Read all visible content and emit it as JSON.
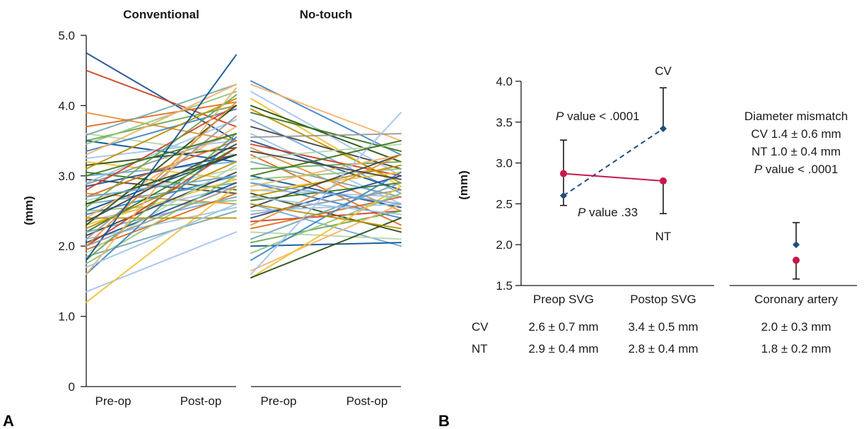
{
  "panel_a": {
    "label": "A",
    "ylabel": "(mm)",
    "y_ticks": [
      "0",
      "1.0",
      "2.0",
      "3.0",
      "4.0",
      "5.0"
    ],
    "groups": [
      {
        "title": "Conventional",
        "x_labels": [
          "Pre-op",
          "Post-op"
        ]
      },
      {
        "title": "No-touch",
        "x_labels": [
          "Pre-op",
          "Post-op"
        ]
      }
    ]
  },
  "panel_b": {
    "label": "B",
    "ylabel": "(mm)",
    "y_ticks": [
      "1.5",
      "2.0",
      "2.5",
      "3.0",
      "3.5",
      "4.0"
    ],
    "x_labels": [
      "Preop SVG",
      "Postop SVG",
      "Coronary artery"
    ],
    "series_labels": {
      "cv": "CV",
      "nt": "NT"
    },
    "annotations": {
      "cv_p_italic": "P",
      "cv_p_rest": " value < .0001",
      "nt_p_italic": "P",
      "nt_p_rest": " value .33",
      "mismatch_title": "Diameter mismatch",
      "mismatch_cv": "CV 1.4 ± 0.6 mm",
      "mismatch_nt": "NT 1.0 ± 0.4 mm",
      "mismatch_p_italic": "P",
      "mismatch_p_rest": " value < .0001"
    },
    "table": {
      "rows": [
        {
          "label": "CV",
          "cells": [
            "2.6 ± 0.7 mm",
            "3.4 ± 0.5 mm",
            "2.0 ± 0.3 mm"
          ]
        },
        {
          "label": "NT",
          "cells": [
            "2.9 ± 0.4 mm",
            "2.8 ± 0.4 mm",
            "1.8 ± 0.2 mm"
          ]
        }
      ]
    }
  },
  "chart_data": [
    {
      "type": "line",
      "title": "",
      "panel": "A",
      "ylabel": "(mm)",
      "ylim": [
        0,
        5
      ],
      "grid": false,
      "groups": [
        {
          "name": "Conventional",
          "x": [
            "Pre-op",
            "Post-op"
          ],
          "pairs": [
            [
              4.75,
              3.5
            ],
            [
              4.5,
              3.7
            ],
            [
              3.9,
              3.5
            ],
            [
              3.7,
              4.05
            ],
            [
              3.6,
              3.3
            ],
            [
              3.58,
              4.3
            ],
            [
              3.5,
              4.0
            ],
            [
              3.5,
              3.2
            ],
            [
              3.45,
              4.2
            ],
            [
              3.35,
              3.95
            ],
            [
              3.3,
              4.3
            ],
            [
              3.25,
              3.5
            ],
            [
              3.2,
              2.95
            ],
            [
              3.15,
              3.4
            ],
            [
              3.1,
              4.1
            ],
            [
              3.05,
              2.8
            ],
            [
              3.0,
              3.2
            ],
            [
              2.95,
              2.75
            ],
            [
              2.9,
              3.8
            ],
            [
              2.88,
              3.6
            ],
            [
              2.85,
              3.3
            ],
            [
              2.8,
              4.0
            ],
            [
              2.75,
              2.6
            ],
            [
              2.7,
              3.5
            ],
            [
              2.65,
              3.1
            ],
            [
              2.6,
              2.9
            ],
            [
              2.55,
              4.15
            ],
            [
              2.5,
              3.3
            ],
            [
              2.5,
              2.65
            ],
            [
              2.45,
              3.0
            ],
            [
              2.4,
              3.7
            ],
            [
              2.35,
              2.85
            ],
            [
              2.3,
              2.95
            ],
            [
              2.3,
              4.0
            ],
            [
              2.25,
              3.2
            ],
            [
              2.2,
              3.4
            ],
            [
              2.2,
              2.7
            ],
            [
              2.15,
              3.05
            ],
            [
              2.1,
              2.55
            ],
            [
              2.1,
              3.85
            ],
            [
              2.05,
              2.9
            ],
            [
              2.0,
              3.4
            ],
            [
              2.0,
              4.05
            ],
            [
              1.95,
              2.75
            ],
            [
              1.9,
              3.15
            ],
            [
              1.85,
              2.5
            ],
            [
              1.8,
              3.6
            ],
            [
              1.8,
              4.72
            ],
            [
              1.75,
              3.0
            ],
            [
              1.6,
              3.55
            ],
            [
              1.6,
              4.25
            ],
            [
              1.35,
              2.2
            ],
            [
              1.2,
              2.85
            ],
            [
              2.6,
              3.3
            ],
            [
              2.4,
              2.4
            ],
            [
              3.0,
              3.6
            ],
            [
              2.7,
              3.0
            ],
            [
              2.35,
              3.45
            ],
            [
              1.7,
              2.6
            ],
            [
              2.0,
              2.85
            ]
          ]
        },
        {
          "name": "No-touch",
          "x": [
            "Pre-op",
            "Post-op"
          ],
          "pairs": [
            [
              4.35,
              3.3
            ],
            [
              4.3,
              3.5
            ],
            [
              4.2,
              3.0
            ],
            [
              4.1,
              2.85
            ],
            [
              4.0,
              3.2
            ],
            [
              3.95,
              2.9
            ],
            [
              3.9,
              3.35
            ],
            [
              3.8,
              2.75
            ],
            [
              3.7,
              3.1
            ],
            [
              3.6,
              2.6
            ],
            [
              3.55,
              3.6
            ],
            [
              3.5,
              2.8
            ],
            [
              3.45,
              3.0
            ],
            [
              3.4,
              2.5
            ],
            [
              3.3,
              2.3
            ],
            [
              3.25,
              3.45
            ],
            [
              3.2,
              2.7
            ],
            [
              3.1,
              3.2
            ],
            [
              3.0,
              2.55
            ],
            [
              2.95,
              3.1
            ],
            [
              2.9,
              2.4
            ],
            [
              2.85,
              3.3
            ],
            [
              2.8,
              2.7
            ],
            [
              2.78,
              3.05
            ],
            [
              2.75,
              2.2
            ],
            [
              2.7,
              3.15
            ],
            [
              2.65,
              2.9
            ],
            [
              2.6,
              2.0
            ],
            [
              2.55,
              3.3
            ],
            [
              2.5,
              2.6
            ],
            [
              2.45,
              2.8
            ],
            [
              2.4,
              3.0
            ],
            [
              2.35,
              2.5
            ],
            [
              2.3,
              3.3
            ],
            [
              2.25,
              2.7
            ],
            [
              2.2,
              2.1
            ],
            [
              2.1,
              2.9
            ],
            [
              2.05,
              2.5
            ],
            [
              2.0,
              2.05
            ],
            [
              1.9,
              2.75
            ],
            [
              1.8,
              3.05
            ],
            [
              1.65,
              2.6
            ],
            [
              1.6,
              3.9
            ],
            [
              1.55,
              2.85
            ],
            [
              1.55,
              2.4
            ],
            [
              2.6,
              2.25
            ],
            [
              3.0,
              3.5
            ],
            [
              2.9,
              2.6
            ],
            [
              3.35,
              2.95
            ],
            [
              2.7,
              2.45
            ]
          ]
        }
      ]
    },
    {
      "type": "line",
      "title": "",
      "panel": "B",
      "ylabel": "(mm)",
      "ylim": [
        1.5,
        4.0
      ],
      "categories": [
        "Preop SVG",
        "Postop SVG",
        "Coronary artery"
      ],
      "series": [
        {
          "name": "CV",
          "values": [
            2.6,
            3.42,
            2.0
          ],
          "error_upper": [
            3.28,
            3.92,
            2.27
          ],
          "error_lower": [
            2.48,
            3.42,
            2.0
          ],
          "color": "#1f4e79",
          "marker": "diamond",
          "line": "dashed"
        },
        {
          "name": "NT",
          "values": [
            2.87,
            2.78,
            1.81
          ],
          "error_upper": [
            2.87,
            2.78,
            1.81
          ],
          "error_lower": [
            2.87,
            2.38,
            1.58
          ],
          "color": "#c8184a",
          "marker": "circle",
          "line": "solid"
        }
      ]
    }
  ]
}
